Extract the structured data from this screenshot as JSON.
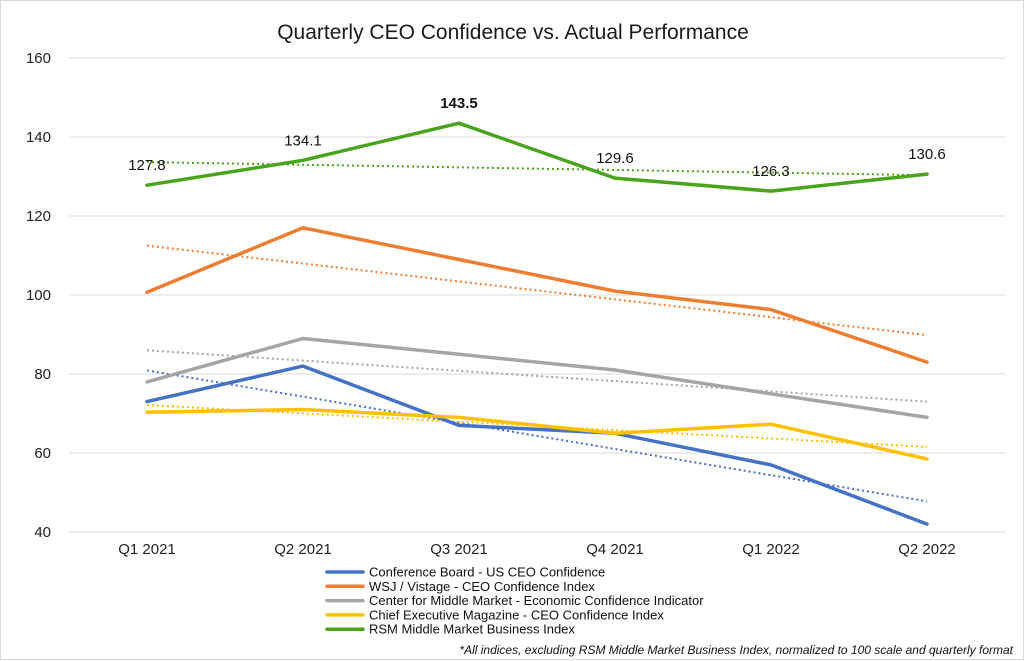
{
  "chart_data": {
    "type": "line",
    "title": "Quarterly CEO Confidence vs. Actual Performance",
    "xlabel": "",
    "ylabel": "",
    "categories": [
      "Q1 2021",
      "Q2 2021",
      "Q3 2021",
      "Q4 2021",
      "Q1 2022",
      "Q2 2022"
    ],
    "ylim": [
      40,
      160
    ],
    "yticks": [
      "40",
      "60",
      "80",
      "100",
      "120",
      "140",
      "160"
    ],
    "grid": "horizontal",
    "legend_position": "bottom",
    "trendlines": "dotted linear trendline per series",
    "series": [
      {
        "name": "Conference Board - US CEO Confidence",
        "color": "#4472c4",
        "values": [
          73,
          82,
          67,
          65,
          57,
          42
        ]
      },
      {
        "name": "WSJ / Vistage - CEO Confidence Index",
        "color": "#ed7d31",
        "values": [
          100.7,
          117,
          109,
          101,
          96.3,
          83
        ]
      },
      {
        "name": "Center for Middle Market - Economic Confidence Indicator",
        "color": "#a5a5a5",
        "values": [
          78,
          89,
          85,
          81,
          75,
          69
        ]
      },
      {
        "name": "Chief Executive Magazine - CEO Confidence Index",
        "color": "#ffc000",
        "values": [
          70.3,
          71,
          69,
          65,
          67.3,
          58.5
        ]
      },
      {
        "name": "RSM Middle Market Business Index",
        "color": "#4aa31c",
        "values": [
          127.8,
          134.1,
          143.5,
          129.6,
          126.3,
          130.6
        ]
      }
    ],
    "data_labels": [
      "127.8",
      "134.1",
      "143.5",
      "129.6",
      "126.3",
      "130.6"
    ],
    "footnote": "*All indices, excluding RSM Middle Market Business Index, normalized to 100 scale and quarterly format"
  }
}
